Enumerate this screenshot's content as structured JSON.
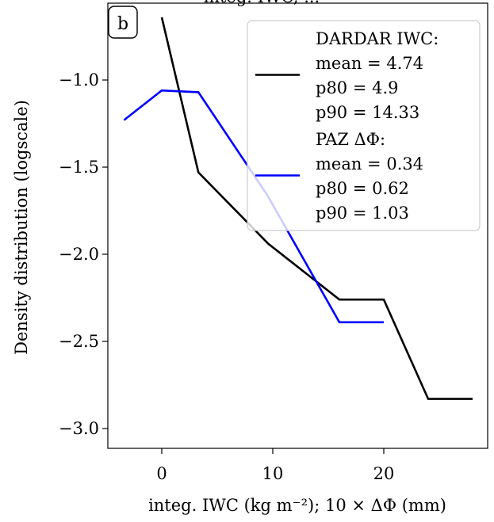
{
  "chart_data": {
    "type": "line",
    "top_text": "integ. IWC, ...",
    "panel_label": "b",
    "xlabel": "integ. IWC (kg m⁻²); 10 × ΔΦ  (mm)",
    "ylabel": "Density distribution (logscale)",
    "xlim": [
      -5,
      29
    ],
    "ylim": [
      -3.1,
      -0.6
    ],
    "xticks": [
      0,
      10,
      20
    ],
    "xtick_labels": [
      "0",
      "10",
      "20"
    ],
    "yticks": [
      -1.0,
      -1.5,
      -2.0,
      -2.5,
      -3.0
    ],
    "ytick_labels": [
      "−1.0",
      "−1.5",
      "−2.0",
      "−2.5",
      "−3.0"
    ],
    "legend_position": "top-right",
    "series": [
      {
        "name": "DARDAR IWC:",
        "color": "#000000",
        "stats": [
          "mean = 4.74",
          "p80 = 4.9",
          "p90 = 14.33"
        ],
        "x": [
          0,
          3.3,
          9.6,
          16,
          20,
          24,
          28
        ],
        "y": [
          -0.64,
          -1.53,
          -1.94,
          -2.26,
          -2.26,
          -2.83,
          -2.83
        ]
      },
      {
        "name": "PAZ ΔΦ:",
        "color": "#0000ff",
        "stats": [
          "mean = 0.34",
          "p80 = 0.62",
          "p90 = 1.03"
        ],
        "x": [
          -3.4,
          0,
          3.3,
          9.5,
          16,
          20
        ],
        "y": [
          -1.23,
          -1.06,
          -1.07,
          -1.66,
          -2.39,
          -2.39
        ]
      }
    ]
  }
}
